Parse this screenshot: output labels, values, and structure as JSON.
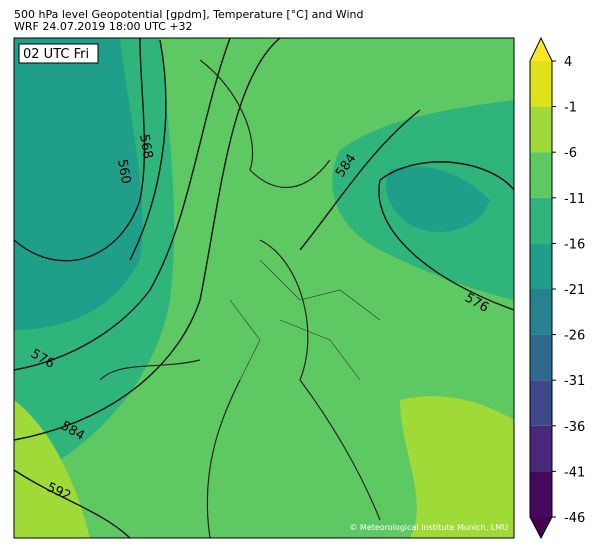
{
  "header": {
    "title": "500 hPa level Geopotential [gpdm], Temperature [°C] and Wind",
    "subtitle": "WRF 24.07.2019 18:00 UTC +32"
  },
  "map": {
    "time_label": "02 UTC Fri",
    "contour_labels": [
      568,
      560,
      584,
      576,
      576,
      584,
      592
    ],
    "copyright": "© Meteorological Institute Munich, LMU"
  },
  "colorbar": {
    "ticks": [
      4,
      -1,
      -6,
      -11,
      -16,
      -21,
      -26,
      -31,
      -36,
      -41,
      -46
    ],
    "colors": [
      "#fde725",
      "#dde318",
      "#a0da39",
      "#5ec962",
      "#2fb47c",
      "#1f9e89",
      "#26828e",
      "#31688e",
      "#3e4989",
      "#482878",
      "#46085c",
      "#440154"
    ]
  }
}
